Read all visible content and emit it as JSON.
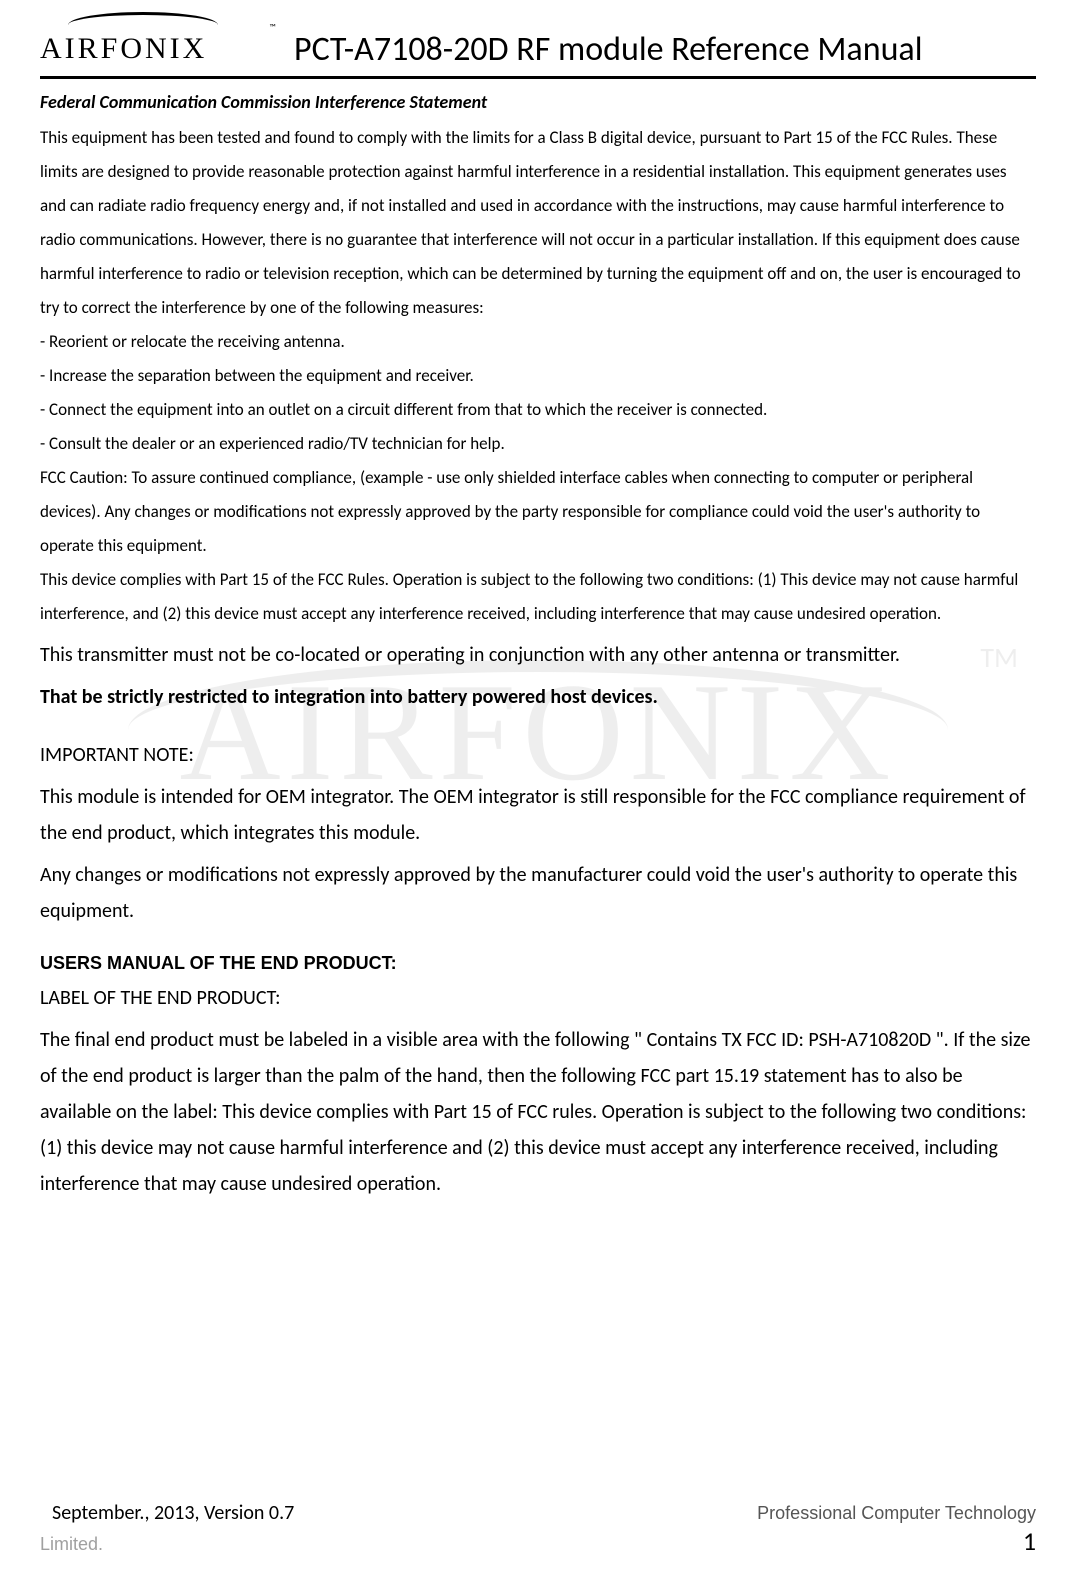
{
  "header": {
    "logo_text": "AIRFONIX",
    "logo_tm": "™",
    "title": "PCT-A7108-20D RF module Reference Manual"
  },
  "watermark": {
    "text": "AIRFONIX",
    "tm": "TM"
  },
  "fcc": {
    "heading": "Federal Communication Commission Interference Statement",
    "para1": "This equipment has been tested and found to comply with the limits for a Class B digital device, pursuant to Part 15 of the FCC Rules. These limits are designed to provide reasonable protection against harmful interference in a residential installation. This equipment generates uses and can radiate radio frequency energy and, if not installed and used in accordance with the instructions, may cause harmful interference to radio communications. However, there is no guarantee that interference will not occur in a particular installation. If this equipment does cause harmful interference to radio or television reception, which can be determined by turning the equipment off and on, the user is encouraged to try to correct the interference by one of the following measures:",
    "bullets": [
      "- Reorient or relocate the receiving antenna.",
      "- Increase the separation between the equipment and receiver.",
      "- Connect the equipment into an outlet on a circuit different from that to which the receiver is connected.",
      "- Consult the dealer or an experienced radio/TV technician for help."
    ],
    "caution": "FCC Caution: To assure continued compliance, (example - use only shielded interface cables when connecting to computer or peripheral devices). Any changes or modifications not expressly approved by the party responsible for compliance could void the user's authority to operate this equipment.",
    "part15": "This device complies with Part 15 of the FCC Rules. Operation is subject to the following two conditions: (1) This device may not cause harmful interference, and (2) this device must accept any interference received, including interference that may cause undesired operation."
  },
  "large_block": {
    "colocate": "This transmitter must not be co-located or operating in conjunction with any other antenna or transmitter.",
    "restricted_bold": "That be strictly restricted to integration into battery powered host devices.",
    "important_label": "IMPORTANT NOTE:",
    "important_para1": "This module is intended for OEM integrator. The OEM integrator is still responsible for the FCC compliance requirement of the end product, which integrates this module.",
    "important_para2": "Any changes or modifications not expressly approved by the manufacturer could void the user's authority to operate this equipment.",
    "users_manual_heading": "USERS MANUAL OF THE END PRODUCT:",
    "label_heading": "LABEL OF THE END PRODUCT:",
    "label_para": "The final end product must be labeled in a visible area with the following \" Contains TX FCC ID: PSH-A710820D \". If the size of the end product is larger than the palm of the hand, then the following FCC part 15.19 statement has to also be available on the label:   This device complies with Part 15 of FCC rules. Operation is subject to the following two conditions: (1) this device may not cause harmful interference and (2) this device must accept any interference received, including interference that may cause undesired operation."
  },
  "footer": {
    "version": "September., 2013, Version 0.7",
    "company": "Professional Computer Technology",
    "limited": "Limited.",
    "page": "1"
  },
  "colors": {
    "text": "#000000",
    "muted": "#a0a0a0",
    "watermark": "#7a7a7a",
    "background": "#ffffff"
  },
  "fonts": {
    "body": "Calibri",
    "headings_sans": "Arial",
    "logo": "Georgia"
  }
}
